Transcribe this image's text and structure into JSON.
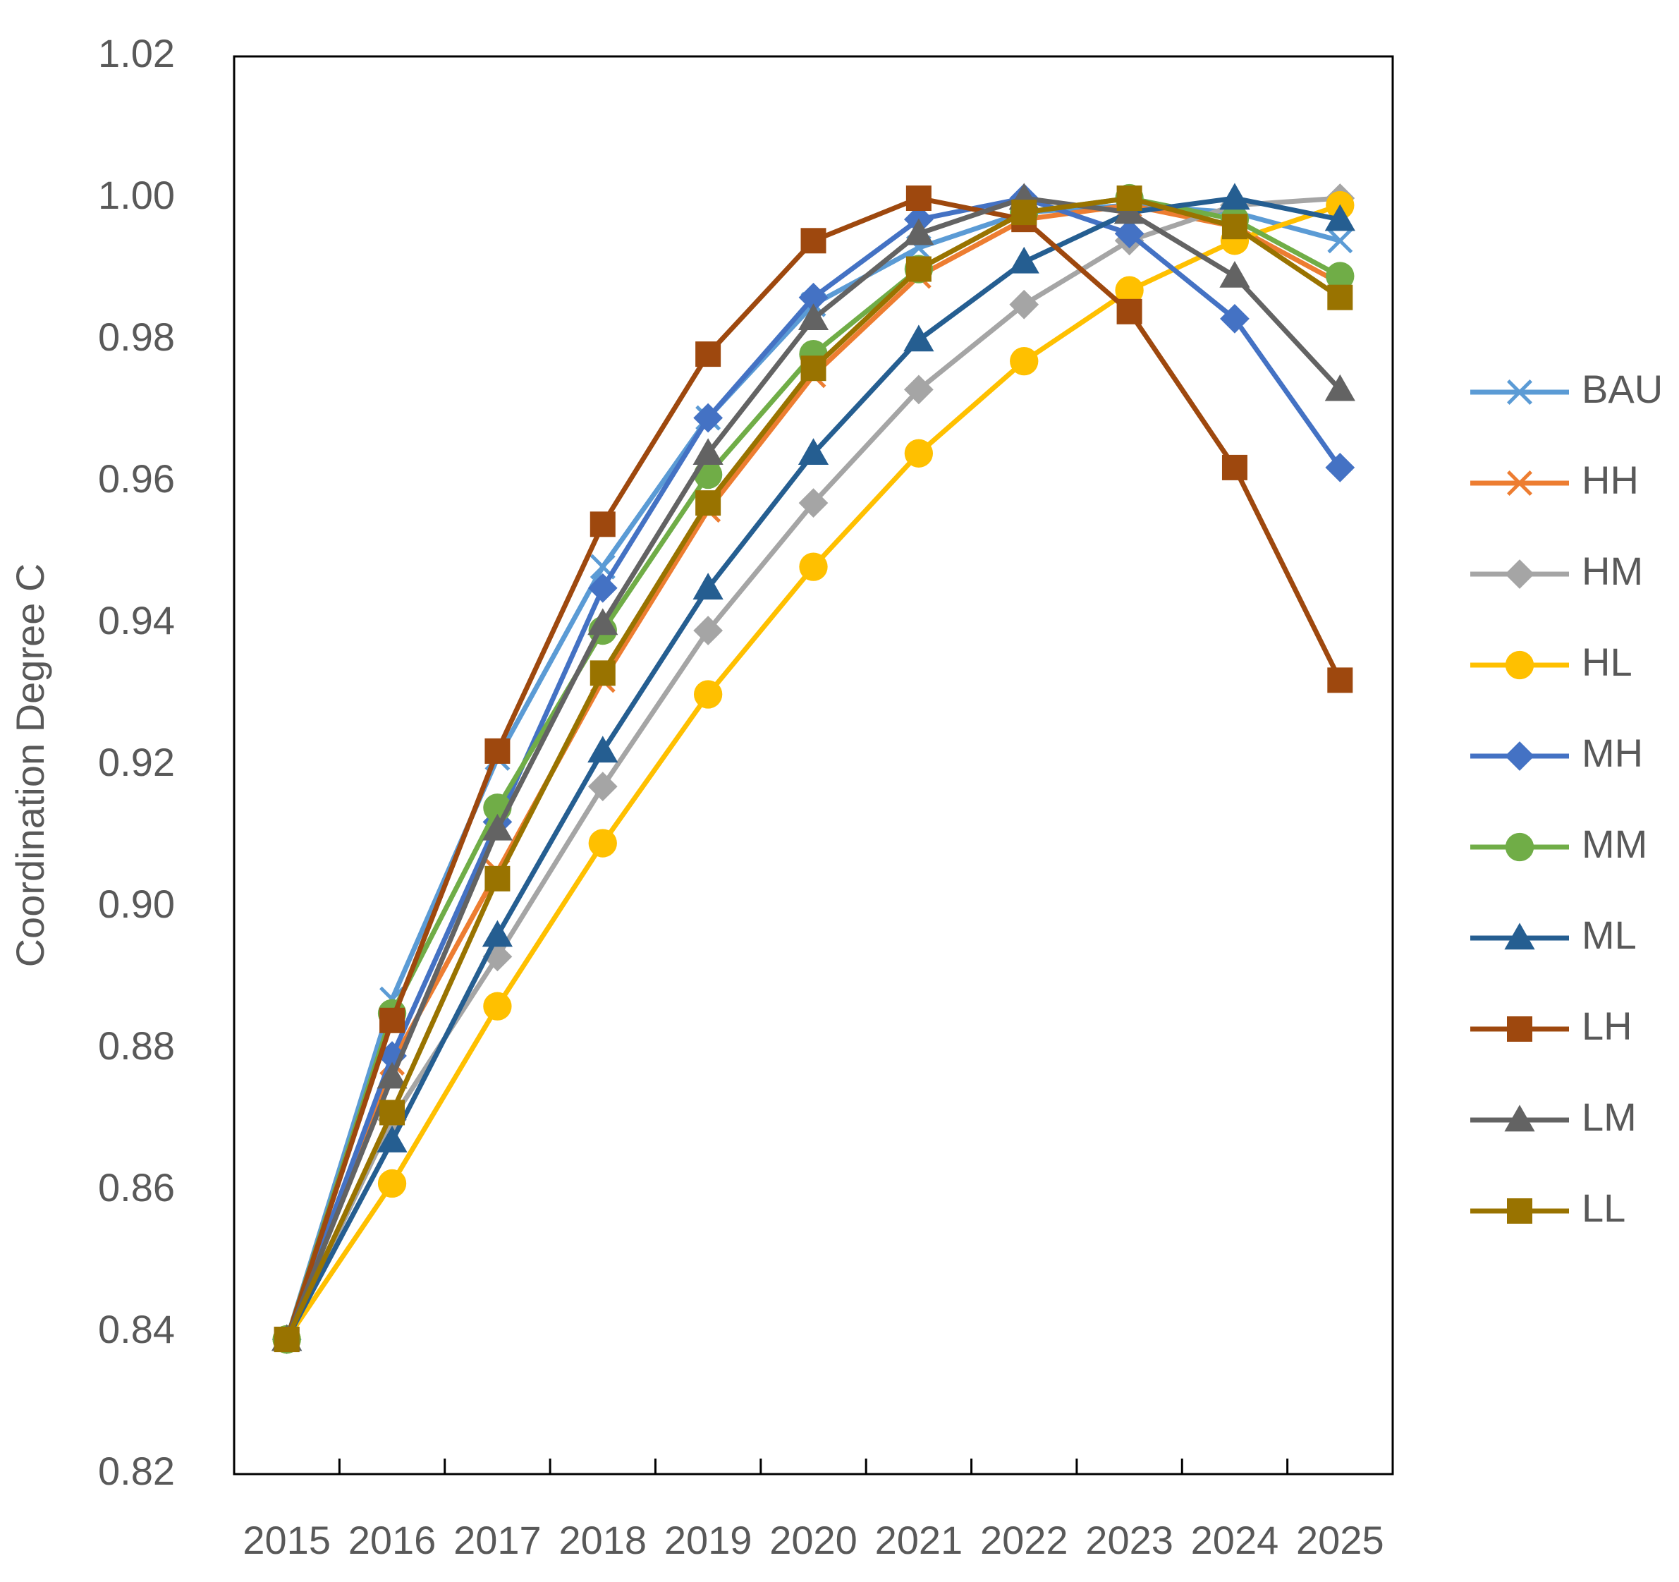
{
  "chart_data": {
    "type": "line",
    "title": "",
    "xlabel": "",
    "ylabel": "Coordination Degree C",
    "categories": [
      "2015",
      "2016",
      "2017",
      "2018",
      "2019",
      "2020",
      "2021",
      "2022",
      "2023",
      "2024",
      "2025"
    ],
    "ylim": [
      0.82,
      1.02
    ],
    "yticks": [
      "0.82",
      "0.84",
      "0.86",
      "0.88",
      "0.90",
      "0.92",
      "0.94",
      "0.96",
      "0.98",
      "1.00",
      "1.02"
    ],
    "grid": false,
    "legend_position": "right",
    "series": [
      {
        "name": "BAU",
        "color": "#5B9BD5",
        "marker": "x",
        "values": [
          0.839,
          0.887,
          0.921,
          0.948,
          0.969,
          0.985,
          0.993,
          0.998,
          0.999,
          0.998,
          0.994
        ]
      },
      {
        "name": "HH",
        "color": "#ED7D31",
        "marker": "x",
        "values": [
          0.839,
          0.878,
          0.905,
          0.932,
          0.956,
          0.975,
          0.989,
          0.997,
          0.999,
          0.996,
          0.988
        ]
      },
      {
        "name": "HM",
        "color": "#A5A5A5",
        "marker": "diamond",
        "values": [
          0.839,
          0.87,
          0.893,
          0.917,
          0.939,
          0.957,
          0.973,
          0.985,
          0.994,
          0.999,
          1.0
        ]
      },
      {
        "name": "HL",
        "color": "#FFC000",
        "marker": "circle",
        "values": [
          0.839,
          0.861,
          0.886,
          0.909,
          0.93,
          0.948,
          0.964,
          0.977,
          0.987,
          0.994,
          0.999
        ]
      },
      {
        "name": "MH",
        "color": "#4472C4",
        "marker": "diamond",
        "values": [
          0.839,
          0.879,
          0.912,
          0.945,
          0.969,
          0.986,
          0.997,
          1.0,
          0.995,
          0.983,
          0.962
        ]
      },
      {
        "name": "MM",
        "color": "#70AD47",
        "marker": "circle",
        "values": [
          0.839,
          0.885,
          0.914,
          0.939,
          0.961,
          0.978,
          0.99,
          0.998,
          1.0,
          0.997,
          0.989
        ]
      },
      {
        "name": "ML",
        "color": "#255E91",
        "marker": "triangle",
        "values": [
          0.839,
          0.867,
          0.896,
          0.922,
          0.945,
          0.964,
          0.98,
          0.991,
          0.998,
          1.0,
          0.997
        ]
      },
      {
        "name": "LH",
        "color": "#9E480E",
        "marker": "square",
        "values": [
          0.839,
          0.884,
          0.922,
          0.954,
          0.978,
          0.994,
          1.0,
          0.997,
          0.984,
          0.962,
          0.932
        ]
      },
      {
        "name": "LM",
        "color": "#636363",
        "marker": "triangle",
        "values": [
          0.839,
          0.876,
          0.911,
          0.94,
          0.964,
          0.983,
          0.995,
          1.0,
          0.998,
          0.989,
          0.973
        ]
      },
      {
        "name": "LL",
        "color": "#997300",
        "marker": "square",
        "values": [
          0.839,
          0.871,
          0.904,
          0.933,
          0.957,
          0.976,
          0.99,
          0.998,
          1.0,
          0.996,
          0.986
        ]
      }
    ]
  }
}
